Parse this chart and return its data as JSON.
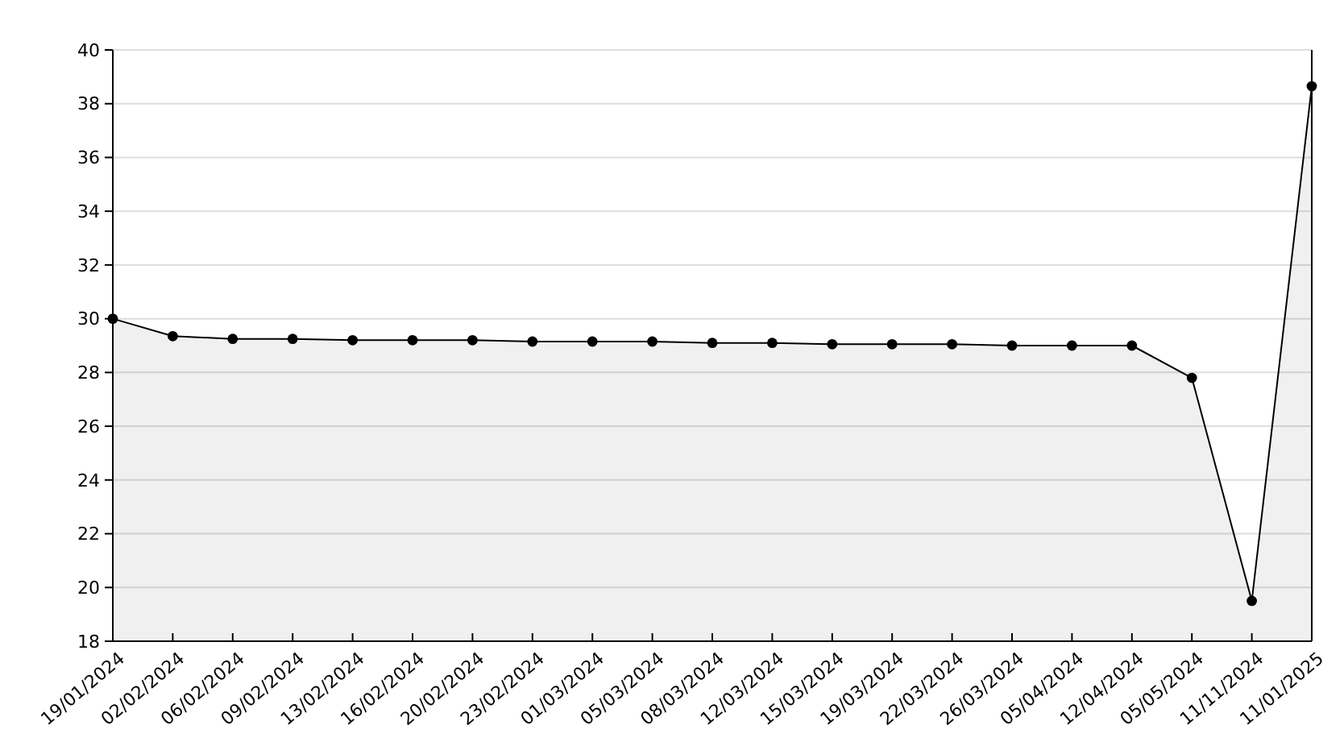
{
  "chart_data": {
    "type": "area",
    "categories": [
      "19/01/2024",
      "02/02/2024",
      "06/02/2024",
      "09/02/2024",
      "13/02/2024",
      "16/02/2024",
      "20/02/2024",
      "23/02/2024",
      "01/03/2024",
      "05/03/2024",
      "08/03/2024",
      "12/03/2024",
      "15/03/2024",
      "19/03/2024",
      "22/03/2024",
      "26/03/2024",
      "05/04/2024",
      "12/04/2024",
      "05/05/2024",
      "11/11/2024",
      "11/01/2025"
    ],
    "series": [
      {
        "color": "#000000",
        "values": [
          30,
          29.35,
          29.25,
          29.25,
          29.2,
          29.2,
          29.2,
          29.15,
          29.15,
          29.15,
          29.1,
          29.1,
          29.05,
          29.05,
          29.05,
          29.0,
          29.0,
          29.0,
          27.8,
          19.5,
          38.65
        ]
      }
    ],
    "ylim": [
      18,
      40
    ],
    "yticks": [
      18,
      20,
      22,
      24,
      26,
      28,
      30,
      32,
      34,
      36,
      38,
      40
    ],
    "grid": "y",
    "marker": "circle",
    "line_style": "solid"
  }
}
